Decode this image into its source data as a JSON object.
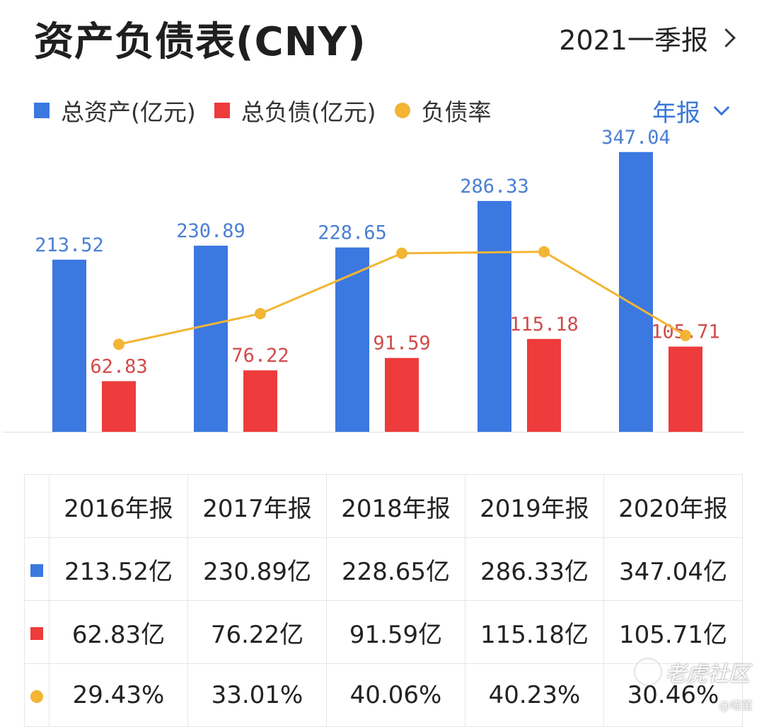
{
  "header": {
    "title": "资产负债表(CNY)",
    "period": "2021一季报"
  },
  "legend": {
    "assets": "总资产(亿元)",
    "liabilities": "总负债(亿元)",
    "ratio": "负债率"
  },
  "frequency": "年报",
  "colors": {
    "assets": "#3b78e0",
    "liabilities": "#ee3b3b",
    "ratio": "#f2b534"
  },
  "chart_data": {
    "type": "bar",
    "categories": [
      "2016年报",
      "2017年报",
      "2018年报",
      "2019年报",
      "2020年报"
    ],
    "series": [
      {
        "name": "总资产(亿元)",
        "values": [
          213.52,
          230.89,
          228.65,
          286.33,
          347.04
        ],
        "labels": [
          "213.52",
          "230.89",
          "228.65",
          "286.33",
          "347.04"
        ]
      },
      {
        "name": "总负债(亿元)",
        "values": [
          62.83,
          76.22,
          91.59,
          115.18,
          105.71
        ],
        "labels": [
          "62.83",
          "76.22",
          "91.59",
          "115.18",
          "105.71"
        ]
      },
      {
        "name": "负债率",
        "type": "line",
        "values": [
          29.43,
          33.01,
          40.06,
          40.23,
          30.46
        ]
      }
    ],
    "ylim": [
      0,
      360
    ]
  },
  "table": {
    "headers": [
      "2016年报",
      "2017年报",
      "2018年报",
      "2019年报",
      "2020年报"
    ],
    "rows": [
      {
        "icon": "blue-square",
        "values": [
          "213.52亿",
          "230.89亿",
          "228.65亿",
          "286.33亿",
          "347.04亿"
        ]
      },
      {
        "icon": "red-square",
        "values": [
          "62.83亿",
          "76.22亿",
          "91.59亿",
          "115.18亿",
          "105.71亿"
        ]
      },
      {
        "icon": "orange-dot",
        "values": [
          "29.43%",
          "33.01%",
          "40.06%",
          "40.23%",
          "30.46%"
        ]
      }
    ]
  },
  "watermark": {
    "text": "老虎社区",
    "handle": "@喵董"
  }
}
